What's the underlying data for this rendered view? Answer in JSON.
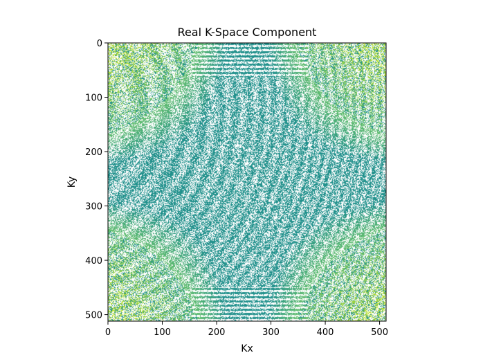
{
  "chart_data": {
    "type": "heatmap",
    "title": "Real K-Space Component",
    "xlabel": "Kx",
    "ylabel": "Ky",
    "xlim": [
      0,
      512
    ],
    "ylim": [
      512,
      0
    ],
    "xticks": [
      0,
      100,
      200,
      300,
      400,
      500
    ],
    "yticks": [
      0,
      100,
      200,
      300,
      400,
      500
    ],
    "grid": false,
    "legend": "none",
    "colormap": "viridis",
    "colors": {
      "low": "#ffffff",
      "mid": "#21918c",
      "high": "#b5de2b"
    }
  }
}
